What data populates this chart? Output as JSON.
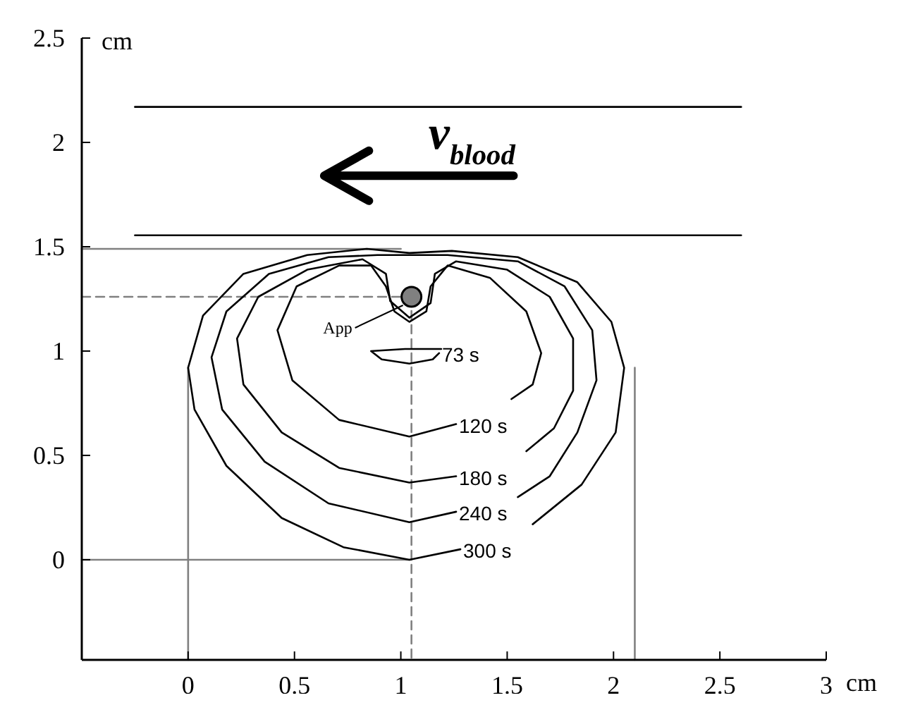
{
  "chart_data": {
    "type": "line",
    "xlabel": "cm",
    "ylabel": "cm",
    "xlim": [
      -0.5,
      3
    ],
    "ylim": [
      -0.48,
      2.5
    ],
    "xticks": [
      0,
      0.5,
      1,
      1.5,
      2,
      2.5,
      3
    ],
    "yticks": [
      0,
      0.5,
      1,
      1.5,
      2,
      2.5
    ],
    "grid": false,
    "legend": false,
    "marker": "none",
    "line_style": "solid",
    "annotations": [
      "v$_{blood}$",
      {
        "text": "App",
        "x": 1.05,
        "y": 1.26
      }
    ],
    "series": [
      {
        "color": "#000000",
        "x": [
          -0.25,
          2.6
        ],
        "values": [
          2.17,
          2.17
        ]
      },
      {
        "color": "#000000",
        "x": [
          -0.25,
          2.6
        ],
        "values": [
          1.555,
          1.555
        ]
      },
      {
        "color": "#808080",
        "x": [
          -0.5,
          1.0
        ],
        "values": [
          1.49,
          1.49
        ]
      },
      {
        "color": "#808080",
        "x": [
          -0.5,
          1.05
        ],
        "values": [
          0,
          0
        ]
      },
      {
        "color": "#808080",
        "x": [
          0,
          0
        ],
        "values": [
          0.92,
          -0.48
        ]
      },
      {
        "color": "#808080",
        "x": [
          2.1,
          2.1
        ],
        "values": [
          0.92,
          -0.48
        ]
      },
      {
        "color": "#808080",
        "line_style": "dashed",
        "x": [
          -0.5,
          1.05
        ],
        "values": [
          1.26,
          1.26
        ]
      },
      {
        "color": "#808080",
        "line_style": "dashed",
        "x": [
          1.05,
          1.05
        ],
        "values": [
          1.26,
          -0.48
        ]
      },
      {
        "name": "300 s",
        "color": "#000000",
        "x": [
          1.62,
          1.85,
          2.01,
          2.05,
          1.99,
          1.83,
          1.55,
          1.24,
          1.04,
          0.84,
          0.56,
          0.26,
          0.07,
          0,
          0.03,
          0.18,
          0.44,
          0.73,
          1.04,
          1.28
        ],
        "values": [
          0.17,
          0.36,
          0.61,
          0.92,
          1.14,
          1.33,
          1.45,
          1.48,
          1.47,
          1.49,
          1.46,
          1.37,
          1.17,
          0.92,
          0.72,
          0.45,
          0.2,
          0.06,
          0,
          0.05
        ]
      },
      {
        "name": "240 s",
        "color": "#000000",
        "x": [
          1.55,
          1.7,
          1.83,
          1.92,
          1.9,
          1.77,
          1.55,
          1.22,
          1.04,
          0.89,
          0.66,
          0.38,
          0.18,
          0.11,
          0.16,
          0.36,
          0.66,
          1.04,
          1.26
        ],
        "values": [
          0.3,
          0.4,
          0.61,
          0.86,
          1.1,
          1.31,
          1.43,
          1.46,
          1.46,
          1.46,
          1.45,
          1.37,
          1.19,
          0.97,
          0.72,
          0.47,
          0.27,
          0.18,
          0.23
        ]
      },
      {
        "name": "180 s",
        "color": "#000000",
        "x": [
          1.59,
          1.72,
          1.81,
          1.81,
          1.7,
          1.5,
          1.26,
          1.16,
          1.14,
          1.04,
          0.95,
          0.93,
          0.82,
          0.56,
          0.33,
          0.23,
          0.26,
          0.44,
          0.71,
          1.04,
          1.26
        ],
        "values": [
          0.52,
          0.63,
          0.81,
          1.06,
          1.26,
          1.39,
          1.43,
          1.37,
          1.23,
          1.16,
          1.24,
          1.37,
          1.44,
          1.39,
          1.26,
          1.06,
          0.84,
          0.61,
          0.44,
          0.37,
          0.4
        ]
      },
      {
        "name": "120 s",
        "color": "#000000",
        "x": [
          1.52,
          1.62,
          1.66,
          1.59,
          1.42,
          1.22,
          1.14,
          1.12,
          1.04,
          0.97,
          0.93,
          0.86,
          0.71,
          0.51,
          0.42,
          0.49,
          0.71,
          1.04,
          1.26
        ],
        "values": [
          0.77,
          0.84,
          0.99,
          1.19,
          1.35,
          1.41,
          1.31,
          1.19,
          1.14,
          1.19,
          1.31,
          1.41,
          1.41,
          1.31,
          1.1,
          0.86,
          0.67,
          0.59,
          0.65
        ]
      },
      {
        "name": "73 s",
        "color": "#000000",
        "x": [
          1.19,
          1.02,
          0.86,
          0.91,
          1.04,
          1.15,
          1.18
        ],
        "values": [
          1.01,
          1.01,
          1.0,
          0.96,
          0.94,
          0.96,
          0.99
        ]
      },
      {
        "type": "scatter",
        "marker": "circle",
        "color": "#808080",
        "x": [
          1.05
        ],
        "values": [
          1.26
        ]
      }
    ]
  }
}
